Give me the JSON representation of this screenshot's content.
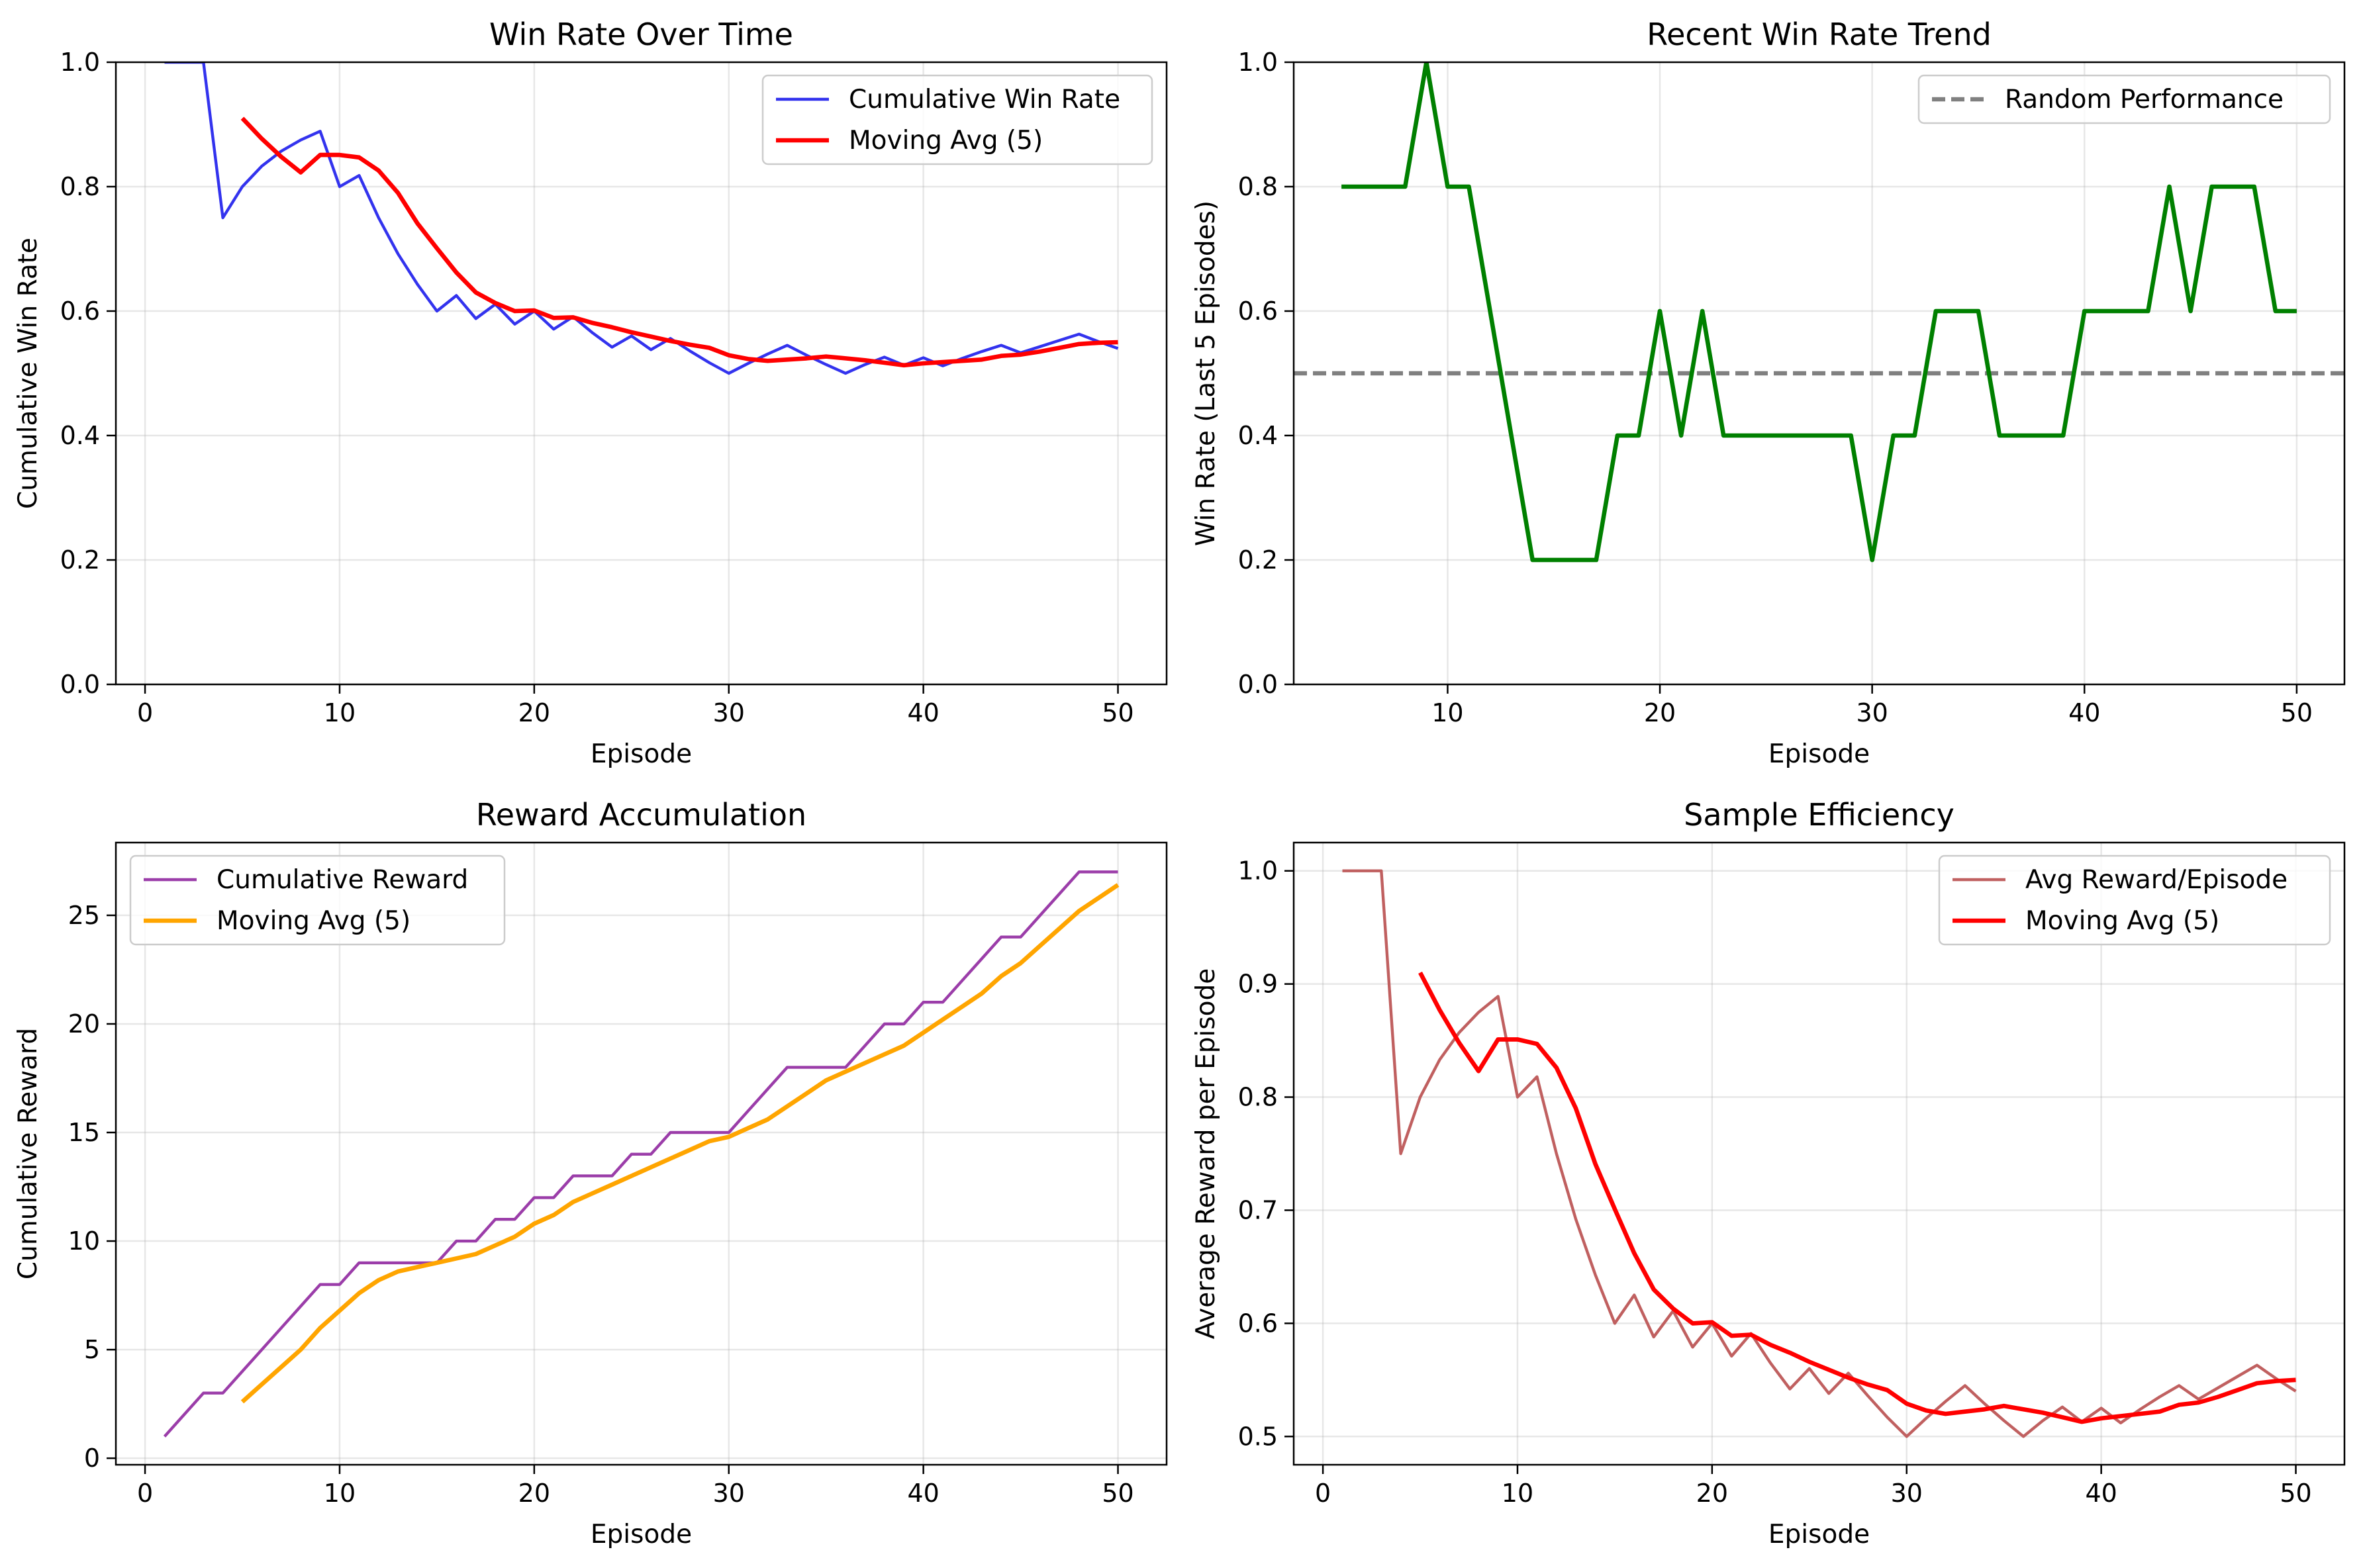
{
  "chart_data": [
    {
      "type": "line",
      "title": "Win Rate Over Time",
      "xlabel": "Episode",
      "ylabel": "Cumulative Win Rate",
      "xlim": [
        -1.5,
        52.5
      ],
      "ylim": [
        0.0,
        1.0
      ],
      "xticks": [
        0,
        10,
        20,
        30,
        40,
        50
      ],
      "yticks": [
        0.0,
        0.2,
        0.4,
        0.6,
        0.8,
        1.0
      ],
      "xtick_labels": [
        "0",
        "10",
        "20",
        "30",
        "40",
        "50"
      ],
      "ytick_labels": [
        "0.0",
        "0.2",
        "0.4",
        "0.6",
        "0.8",
        "1.0"
      ],
      "grid": true,
      "legend": "upper right",
      "series": [
        {
          "name": "Cumulative Win Rate",
          "color": "#3333ee",
          "width": 2,
          "x": [
            1,
            2,
            3,
            4,
            5,
            6,
            7,
            8,
            9,
            10,
            11,
            12,
            13,
            14,
            15,
            16,
            17,
            18,
            19,
            20,
            21,
            22,
            23,
            24,
            25,
            26,
            27,
            28,
            29,
            30,
            31,
            32,
            33,
            34,
            35,
            36,
            37,
            38,
            39,
            40,
            41,
            42,
            43,
            44,
            45,
            46,
            47,
            48,
            49,
            50
          ],
          "y": [
            1.0,
            1.0,
            1.0,
            0.75,
            0.8,
            0.833,
            0.857,
            0.875,
            0.889,
            0.8,
            0.818,
            0.75,
            0.692,
            0.643,
            0.6,
            0.625,
            0.588,
            0.611,
            0.579,
            0.6,
            0.571,
            0.591,
            0.565,
            0.542,
            0.56,
            0.538,
            0.556,
            0.536,
            0.517,
            0.5,
            0.516,
            0.531,
            0.545,
            0.529,
            0.514,
            0.5,
            0.514,
            0.526,
            0.513,
            0.525,
            0.512,
            0.524,
            0.535,
            0.545,
            0.533,
            0.543,
            0.553,
            0.563,
            0.551,
            0.54
          ]
        },
        {
          "name": "Moving Avg (5)",
          "color": "#ff0000",
          "width": 3,
          "x": [
            5,
            6,
            7,
            8,
            9,
            10,
            11,
            12,
            13,
            14,
            15,
            16,
            17,
            18,
            19,
            20,
            21,
            22,
            23,
            24,
            25,
            26,
            27,
            28,
            29,
            30,
            31,
            32,
            33,
            34,
            35,
            36,
            37,
            38,
            39,
            40,
            41,
            42,
            43,
            44,
            45,
            46,
            47,
            48,
            49,
            50
          ],
          "y": [
            0.91,
            0.877,
            0.848,
            0.823,
            0.851,
            0.851,
            0.847,
            0.826,
            0.79,
            0.741,
            0.701,
            0.662,
            0.63,
            0.613,
            0.6,
            0.601,
            0.589,
            0.59,
            0.581,
            0.574,
            0.566,
            0.559,
            0.552,
            0.546,
            0.541,
            0.529,
            0.523,
            0.52,
            0.522,
            0.524,
            0.527,
            0.524,
            0.521,
            0.517,
            0.513,
            0.516,
            0.518,
            0.52,
            0.522,
            0.528,
            0.53,
            0.535,
            0.541,
            0.547,
            0.549,
            0.55
          ]
        }
      ]
    },
    {
      "type": "line",
      "title": "Recent Win Rate Trend",
      "xlabel": "Episode",
      "ylabel": "Win Rate (Last 5 Episodes)",
      "xlim": [
        2.75,
        52.25
      ],
      "ylim": [
        0.0,
        1.0
      ],
      "xticks": [
        10,
        20,
        30,
        40,
        50
      ],
      "yticks": [
        0.0,
        0.2,
        0.4,
        0.6,
        0.8,
        1.0
      ],
      "xtick_labels": [
        "10",
        "20",
        "30",
        "40",
        "50"
      ],
      "ytick_labels": [
        "0.0",
        "0.2",
        "0.4",
        "0.6",
        "0.8",
        "1.0"
      ],
      "grid": true,
      "legend": "upper right",
      "series": [
        {
          "name": "",
          "color": "#008000",
          "width": 3,
          "x": [
            5,
            6,
            7,
            8,
            9,
            10,
            11,
            12,
            13,
            14,
            15,
            16,
            17,
            18,
            19,
            20,
            21,
            22,
            23,
            24,
            25,
            26,
            27,
            28,
            29,
            30,
            31,
            32,
            33,
            34,
            35,
            36,
            37,
            38,
            39,
            40,
            41,
            42,
            43,
            44,
            45,
            46,
            47,
            48,
            49,
            50
          ],
          "y": [
            0.8,
            0.8,
            0.8,
            0.8,
            1.0,
            0.8,
            0.8,
            0.6,
            0.4,
            0.2,
            0.2,
            0.2,
            0.2,
            0.4,
            0.4,
            0.6,
            0.4,
            0.6,
            0.4,
            0.4,
            0.4,
            0.4,
            0.4,
            0.4,
            0.4,
            0.2,
            0.4,
            0.4,
            0.6,
            0.6,
            0.6,
            0.4,
            0.4,
            0.4,
            0.4,
            0.6,
            0.6,
            0.6,
            0.6,
            0.8,
            0.6,
            0.8,
            0.8,
            0.8,
            0.6,
            0.6
          ]
        }
      ],
      "hlines": [
        {
          "name": "Random Performance",
          "y": 0.5,
          "color": "#808080",
          "dashed": true,
          "width": 3
        }
      ]
    },
    {
      "type": "line",
      "title": "Reward Accumulation",
      "xlabel": "Episode",
      "ylabel": "Cumulative Reward",
      "xlim": [
        -1.5,
        52.5
      ],
      "ylim": [
        -0.3,
        28.35
      ],
      "xticks": [
        0,
        10,
        20,
        30,
        40,
        50
      ],
      "yticks": [
        0,
        5,
        10,
        15,
        20,
        25
      ],
      "xtick_labels": [
        "0",
        "10",
        "20",
        "30",
        "40",
        "50"
      ],
      "ytick_labels": [
        "0",
        "5",
        "10",
        "15",
        "20",
        "25"
      ],
      "grid": true,
      "legend": "upper left",
      "series": [
        {
          "name": "Cumulative Reward",
          "color": "#9b3da9",
          "width": 2,
          "x": [
            1,
            2,
            3,
            4,
            5,
            6,
            7,
            8,
            9,
            10,
            11,
            12,
            13,
            14,
            15,
            16,
            17,
            18,
            19,
            20,
            21,
            22,
            23,
            24,
            25,
            26,
            27,
            28,
            29,
            30,
            31,
            32,
            33,
            34,
            35,
            36,
            37,
            38,
            39,
            40,
            41,
            42,
            43,
            44,
            45,
            46,
            47,
            48,
            49,
            50
          ],
          "y": [
            1,
            2,
            3,
            3,
            4,
            5,
            6,
            7,
            8,
            8,
            9,
            9,
            9,
            9,
            9,
            10,
            10,
            11,
            11,
            12,
            12,
            13,
            13,
            13,
            14,
            14,
            15,
            15,
            15,
            15,
            16,
            17,
            18,
            18,
            18,
            18,
            19,
            20,
            20,
            21,
            21,
            22,
            23,
            24,
            24,
            25,
            26,
            27,
            27,
            27
          ]
        },
        {
          "name": "Moving Avg (5)",
          "color": "#ffa500",
          "width": 3,
          "x": [
            5,
            6,
            7,
            8,
            9,
            10,
            11,
            12,
            13,
            14,
            15,
            16,
            17,
            18,
            19,
            20,
            21,
            22,
            23,
            24,
            25,
            26,
            27,
            28,
            29,
            30,
            31,
            32,
            33,
            34,
            35,
            36,
            37,
            38,
            39,
            40,
            41,
            42,
            43,
            44,
            45,
            46,
            47,
            48,
            49,
            50
          ],
          "y": [
            2.6,
            3.4,
            4.2,
            5.0,
            6.0,
            6.8,
            7.6,
            8.2,
            8.6,
            8.8,
            9.0,
            9.2,
            9.4,
            9.8,
            10.2,
            10.8,
            11.2,
            11.8,
            12.2,
            12.6,
            13.0,
            13.4,
            13.8,
            14.2,
            14.6,
            14.8,
            15.2,
            15.6,
            16.2,
            16.8,
            17.4,
            17.8,
            18.2,
            18.6,
            19.0,
            19.6,
            20.2,
            20.8,
            21.4,
            22.2,
            22.8,
            23.6,
            24.4,
            25.2,
            25.8,
            26.4
          ]
        }
      ]
    },
    {
      "type": "line",
      "title": "Sample Efficiency",
      "xlabel": "Episode",
      "ylabel": "Average Reward per Episode",
      "xlim": [
        -1.5,
        52.5
      ],
      "ylim": [
        0.475,
        1.025
      ],
      "xticks": [
        0,
        10,
        20,
        30,
        40,
        50
      ],
      "yticks": [
        0.5,
        0.6,
        0.7,
        0.8,
        0.9,
        1.0
      ],
      "xtick_labels": [
        "0",
        "10",
        "20",
        "30",
        "40",
        "50"
      ],
      "ytick_labels": [
        "0.5",
        "0.6",
        "0.7",
        "0.8",
        "0.9",
        "1.0"
      ],
      "grid": true,
      "legend": "upper right",
      "series": [
        {
          "name": "Avg Reward/Episode",
          "color": "#c06060",
          "width": 2,
          "x": [
            1,
            2,
            3,
            4,
            5,
            6,
            7,
            8,
            9,
            10,
            11,
            12,
            13,
            14,
            15,
            16,
            17,
            18,
            19,
            20,
            21,
            22,
            23,
            24,
            25,
            26,
            27,
            28,
            29,
            30,
            31,
            32,
            33,
            34,
            35,
            36,
            37,
            38,
            39,
            40,
            41,
            42,
            43,
            44,
            45,
            46,
            47,
            48,
            49,
            50
          ],
          "y": [
            1.0,
            1.0,
            1.0,
            0.75,
            0.8,
            0.833,
            0.857,
            0.875,
            0.889,
            0.8,
            0.818,
            0.75,
            0.692,
            0.643,
            0.6,
            0.625,
            0.588,
            0.611,
            0.579,
            0.6,
            0.571,
            0.591,
            0.565,
            0.542,
            0.56,
            0.538,
            0.556,
            0.536,
            0.517,
            0.5,
            0.516,
            0.531,
            0.545,
            0.529,
            0.514,
            0.5,
            0.514,
            0.526,
            0.513,
            0.525,
            0.512,
            0.524,
            0.535,
            0.545,
            0.533,
            0.543,
            0.553,
            0.563,
            0.551,
            0.54
          ]
        },
        {
          "name": "Moving Avg (5)",
          "color": "#ff0000",
          "width": 3,
          "x": [
            5,
            6,
            7,
            8,
            9,
            10,
            11,
            12,
            13,
            14,
            15,
            16,
            17,
            18,
            19,
            20,
            21,
            22,
            23,
            24,
            25,
            26,
            27,
            28,
            29,
            30,
            31,
            32,
            33,
            34,
            35,
            36,
            37,
            38,
            39,
            40,
            41,
            42,
            43,
            44,
            45,
            46,
            47,
            48,
            49,
            50
          ],
          "y": [
            0.91,
            0.877,
            0.848,
            0.823,
            0.851,
            0.851,
            0.847,
            0.826,
            0.79,
            0.741,
            0.701,
            0.662,
            0.63,
            0.613,
            0.6,
            0.601,
            0.589,
            0.59,
            0.581,
            0.574,
            0.566,
            0.559,
            0.552,
            0.546,
            0.541,
            0.529,
            0.523,
            0.52,
            0.522,
            0.524,
            0.527,
            0.524,
            0.521,
            0.517,
            0.513,
            0.516,
            0.518,
            0.52,
            0.522,
            0.528,
            0.53,
            0.535,
            0.541,
            0.547,
            0.549,
            0.55
          ]
        }
      ]
    }
  ]
}
